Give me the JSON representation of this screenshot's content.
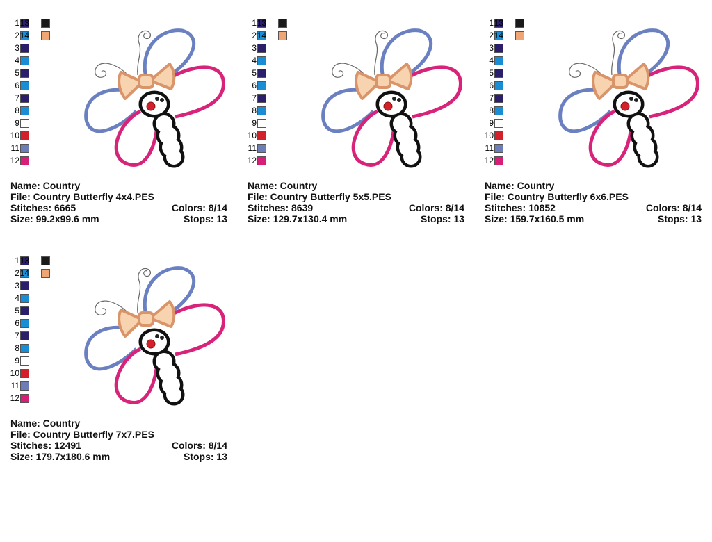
{
  "designs": [
    {
      "swatches": [
        {
          "number": "1",
          "color": "#2b1e6b"
        },
        {
          "number": "2",
          "color": "#1a8ed4"
        },
        {
          "number": "3",
          "color": "#2b1e6b"
        },
        {
          "number": "4",
          "color": "#1a8ed4"
        },
        {
          "number": "5",
          "color": "#2b1e6b"
        },
        {
          "number": "6",
          "color": "#1a8ed4"
        },
        {
          "number": "7",
          "color": "#2b1e6b"
        },
        {
          "number": "8",
          "color": "#1a8ed4"
        },
        {
          "number": "9",
          "color": "#ffffff"
        },
        {
          "number": "10",
          "color": "#d4202a"
        },
        {
          "number": "11",
          "color": "#6d7db6"
        },
        {
          "number": "12",
          "color": "#d81f78"
        },
        {
          "number": "13",
          "color": "#1a1a1a"
        },
        {
          "number": "14",
          "color": "#f0a574"
        }
      ],
      "name": "Name: Country",
      "file": "File: Country Butterfly 4x4.PES",
      "stitches": "Stitches: 6665",
      "colors": "Colors: 8/14",
      "size": "Size: 99.2x99.6 mm",
      "stops": "Stops: 13"
    },
    {
      "swatches": [
        {
          "number": "1",
          "color": "#2b1e6b"
        },
        {
          "number": "2",
          "color": "#1a8ed4"
        },
        {
          "number": "3",
          "color": "#2b1e6b"
        },
        {
          "number": "4",
          "color": "#1a8ed4"
        },
        {
          "number": "5",
          "color": "#2b1e6b"
        },
        {
          "number": "6",
          "color": "#1a8ed4"
        },
        {
          "number": "7",
          "color": "#2b1e6b"
        },
        {
          "number": "8",
          "color": "#1a8ed4"
        },
        {
          "number": "9",
          "color": "#ffffff"
        },
        {
          "number": "10",
          "color": "#d4202a"
        },
        {
          "number": "11",
          "color": "#6d7db6"
        },
        {
          "number": "12",
          "color": "#d81f78"
        },
        {
          "number": "13",
          "color": "#1a1a1a"
        },
        {
          "number": "14",
          "color": "#f0a574"
        }
      ],
      "name": "Name: Country",
      "file": "File: Country Butterfly 5x5.PES",
      "stitches": "Stitches: 8639",
      "colors": "Colors: 8/14",
      "size": "Size: 129.7x130.4 mm",
      "stops": "Stops: 13"
    },
    {
      "swatches": [
        {
          "number": "1",
          "color": "#2b1e6b"
        },
        {
          "number": "2",
          "color": "#1a8ed4"
        },
        {
          "number": "3",
          "color": "#2b1e6b"
        },
        {
          "number": "4",
          "color": "#1a8ed4"
        },
        {
          "number": "5",
          "color": "#2b1e6b"
        },
        {
          "number": "6",
          "color": "#1a8ed4"
        },
        {
          "number": "7",
          "color": "#2b1e6b"
        },
        {
          "number": "8",
          "color": "#1a8ed4"
        },
        {
          "number": "9",
          "color": "#ffffff"
        },
        {
          "number": "10",
          "color": "#d4202a"
        },
        {
          "number": "11",
          "color": "#6d7db6"
        },
        {
          "number": "12",
          "color": "#d81f78"
        },
        {
          "number": "13",
          "color": "#1a1a1a"
        },
        {
          "number": "14",
          "color": "#f0a574"
        }
      ],
      "name": "Name: Country",
      "file": "File: Country Butterfly 6x6.PES",
      "stitches": "Stitches: 10852",
      "colors": "Colors: 8/14",
      "size": "Size: 159.7x160.5 mm",
      "stops": "Stops: 13"
    },
    {
      "swatches": [
        {
          "number": "1",
          "color": "#2b1e6b"
        },
        {
          "number": "2",
          "color": "#1a8ed4"
        },
        {
          "number": "3",
          "color": "#2b1e6b"
        },
        {
          "number": "4",
          "color": "#1a8ed4"
        },
        {
          "number": "5",
          "color": "#2b1e6b"
        },
        {
          "number": "6",
          "color": "#1a8ed4"
        },
        {
          "number": "7",
          "color": "#2b1e6b"
        },
        {
          "number": "8",
          "color": "#1a8ed4"
        },
        {
          "number": "9",
          "color": "#ffffff"
        },
        {
          "number": "10",
          "color": "#d4202a"
        },
        {
          "number": "11",
          "color": "#6d7db6"
        },
        {
          "number": "12",
          "color": "#d81f78"
        },
        {
          "number": "13",
          "color": "#1a1a1a"
        },
        {
          "number": "14",
          "color": "#f0a574"
        }
      ],
      "name": "Name: Country",
      "file": "File: Country Butterfly 7x7.PES",
      "stitches": "Stitches: 12491",
      "colors": "Colors: 8/14",
      "size": "Size: 179.7x180.6 mm",
      "stops": "Stops: 13"
    }
  ]
}
